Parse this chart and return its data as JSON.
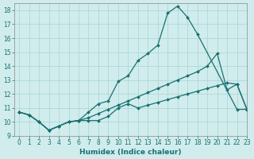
{
  "xlabel": "Humidex (Indice chaleur)",
  "bg_color": "#d0ecec",
  "grid_color": "#a8d4d4",
  "line_color": "#1a7070",
  "xlim": [
    -0.5,
    23
  ],
  "ylim": [
    9,
    18.5
  ],
  "yticks": [
    9,
    10,
    11,
    12,
    13,
    14,
    15,
    16,
    17,
    18
  ],
  "xticks": [
    0,
    1,
    2,
    3,
    4,
    5,
    6,
    7,
    8,
    9,
    10,
    11,
    12,
    13,
    14,
    15,
    16,
    17,
    18,
    19,
    20,
    21,
    22,
    23
  ],
  "line_top_x": [
    0,
    1,
    2,
    3,
    4,
    5,
    6,
    7,
    8,
    9,
    10,
    11,
    12,
    13,
    14,
    15,
    16,
    17,
    18,
    22,
    23
  ],
  "line_top_y": [
    10.7,
    10.5,
    10.0,
    9.4,
    9.7,
    10.0,
    10.1,
    10.7,
    11.3,
    11.5,
    12.9,
    13.3,
    14.4,
    14.9,
    15.5,
    17.8,
    18.3,
    17.5,
    16.3,
    10.9,
    10.9
  ],
  "line_mid_x": [
    0,
    1,
    2,
    3,
    4,
    5,
    6,
    7,
    8,
    9,
    10,
    11,
    12,
    13,
    14,
    15,
    16,
    17,
    18,
    19,
    20,
    21,
    22,
    23
  ],
  "line_mid_y": [
    10.7,
    10.5,
    10.0,
    9.4,
    9.7,
    10.0,
    10.1,
    10.3,
    10.6,
    10.9,
    11.2,
    11.5,
    11.8,
    12.1,
    12.4,
    12.7,
    13.0,
    13.3,
    13.6,
    14.0,
    14.9,
    12.3,
    12.7,
    10.9
  ],
  "line_bot_x": [
    0,
    1,
    2,
    3,
    4,
    5,
    6,
    7,
    8,
    9,
    10,
    11,
    12,
    13,
    14,
    15,
    16,
    17,
    18,
    19,
    20,
    21,
    22,
    23
  ],
  "line_bot_y": [
    10.7,
    10.5,
    10.0,
    9.4,
    9.7,
    10.0,
    10.1,
    10.1,
    10.1,
    10.4,
    11.0,
    11.3,
    11.0,
    11.2,
    11.4,
    11.6,
    11.8,
    12.0,
    12.2,
    12.4,
    12.6,
    12.8,
    12.7,
    10.9
  ],
  "marker": "D",
  "markersize": 2.0,
  "linewidth": 0.9,
  "tick_fontsize": 5.5,
  "label_fontsize": 6.5
}
